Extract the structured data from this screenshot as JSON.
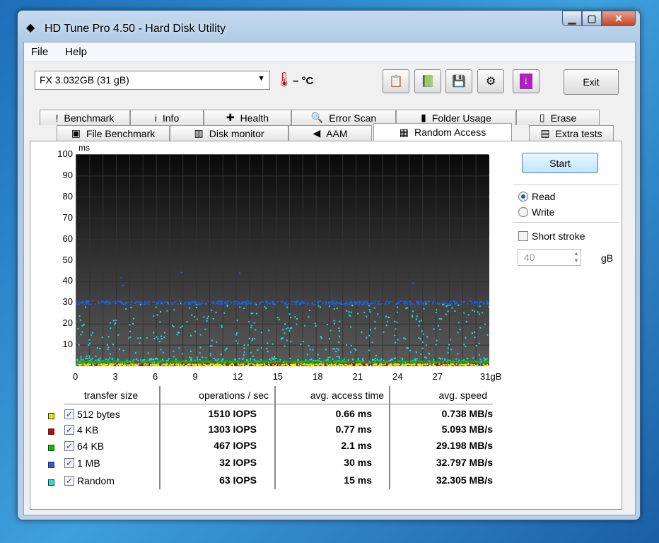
{
  "window": {
    "title": "HD Tune Pro 4.50 - Hard Disk Utility"
  },
  "menu": [
    "File",
    "Help"
  ],
  "toolbar": {
    "drive": "FX 3.032GB (31 gB)",
    "temperature": "– °C",
    "exit": "Exit",
    "icons": [
      "copy-info-icon",
      "copy-screenshot-icon",
      "save-icon",
      "options-icon",
      "download-icon"
    ]
  },
  "tabs_row1": [
    {
      "label": "Benchmark",
      "icon": "!"
    },
    {
      "label": "Info",
      "icon": "i"
    },
    {
      "label": "Health",
      "icon": "✚"
    },
    {
      "label": "Error Scan",
      "icon": "🔍"
    },
    {
      "label": "Folder Usage",
      "icon": "▮"
    },
    {
      "label": "Erase",
      "icon": "▯"
    }
  ],
  "tabs_row2": [
    {
      "label": "File Benchmark",
      "icon": "▣"
    },
    {
      "label": "Disk monitor",
      "icon": "▥"
    },
    {
      "label": "AAM",
      "icon": "◀"
    },
    {
      "label": "Random Access",
      "icon": "▦"
    },
    {
      "label": "Extra tests",
      "icon": "▤"
    }
  ],
  "controls": {
    "start": "Start",
    "read": "Read",
    "write": "Write",
    "mode": "read",
    "short_stroke": "Short stroke",
    "short_stroke_checked": false,
    "stroke_value": "40",
    "stroke_unit": "gB"
  },
  "table": {
    "headers": [
      "transfer size",
      "operations / sec",
      "avg. access time",
      "avg. speed"
    ],
    "rows": [
      {
        "size": "512 bytes",
        "color": "#e8e800",
        "iops": "1510 IOPS",
        "access": "0.66 ms",
        "speed": "0.738 MB/s"
      },
      {
        "size": "4 KB",
        "color": "#d00000",
        "iops": "1303 IOPS",
        "access": "0.77 ms",
        "speed": "5.093 MB/s"
      },
      {
        "size": "64 KB",
        "color": "#00c000",
        "iops": "467 IOPS",
        "access": "2.1 ms",
        "speed": "29.198 MB/s"
      },
      {
        "size": "1 MB",
        "color": "#2060e0",
        "iops": "32 IOPS",
        "access": "30 ms",
        "speed": "32.797 MB/s"
      },
      {
        "size": "Random",
        "color": "#20e0e0",
        "iops": "63 IOPS",
        "access": "15 ms",
        "speed": "32.305 MB/s"
      }
    ]
  },
  "chart_data": {
    "type": "scatter",
    "ylabel": "ms",
    "xlim": [
      0,
      31
    ],
    "ylim": [
      0,
      100
    ],
    "xticks": [
      "0",
      "3",
      "6",
      "9",
      "12",
      "15",
      "18",
      "21",
      "24",
      "27",
      "31gB"
    ],
    "yticks": [
      "10",
      "20",
      "30",
      "40",
      "50",
      "60",
      "70",
      "80",
      "90",
      "100"
    ],
    "grid": true,
    "series": [
      {
        "name": "512 bytes",
        "color": "#e8e800",
        "typical_ms": 0.66
      },
      {
        "name": "4 KB",
        "color": "#d00000",
        "typical_ms": 0.77
      },
      {
        "name": "64 KB",
        "color": "#00c000",
        "typical_ms": 2.1
      },
      {
        "name": "1 MB",
        "color": "#2060e0",
        "typical_ms": 30
      },
      {
        "name": "Random",
        "color": "#20e0e0",
        "typical_ms": 15
      }
    ]
  }
}
